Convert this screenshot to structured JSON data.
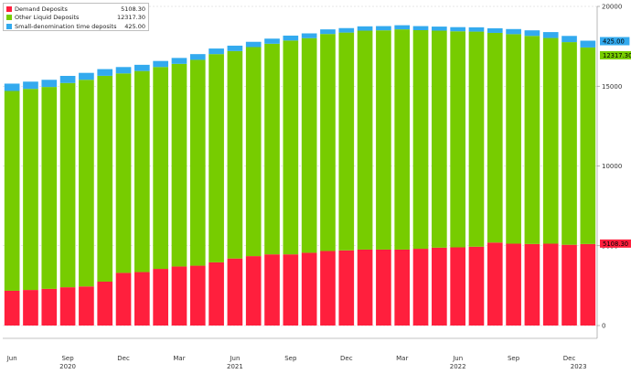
{
  "chart_data": {
    "type": "bar",
    "stacked": true,
    "title": "",
    "xlabel": "",
    "ylabel": "",
    "ylim": [
      0,
      20000
    ],
    "y_ticks": [
      0,
      5000,
      10000,
      15000,
      20000
    ],
    "y_tick_labels": [
      "0",
      "5000",
      "10000",
      "15000",
      "20000"
    ],
    "y_axis_side": "right",
    "grid": true,
    "legend_position": "top-left",
    "categories": [
      "2020-06",
      "2020-07",
      "2020-08",
      "2020-09",
      "2020-10",
      "2020-11",
      "2020-12",
      "2021-01",
      "2021-02",
      "2021-03",
      "2021-04",
      "2021-05",
      "2021-06",
      "2021-07",
      "2021-08",
      "2021-09",
      "2021-10",
      "2021-11",
      "2021-12",
      "2022-01",
      "2022-02",
      "2022-03",
      "2022-04",
      "2022-05",
      "2022-06",
      "2022-07",
      "2022-08",
      "2022-09",
      "2022-10",
      "2022-11",
      "2022-12",
      "2023-01"
    ],
    "month_labels": [
      {
        "index": 0,
        "label": "Jun"
      },
      {
        "index": 3,
        "label": "Sep"
      },
      {
        "index": 6,
        "label": "Dec"
      },
      {
        "index": 9,
        "label": "Mar"
      },
      {
        "index": 12,
        "label": "Jun"
      },
      {
        "index": 15,
        "label": "Sep"
      },
      {
        "index": 18,
        "label": "Dec"
      },
      {
        "index": 21,
        "label": "Mar"
      },
      {
        "index": 24,
        "label": "Jun"
      },
      {
        "index": 27,
        "label": "Sep"
      },
      {
        "index": 30,
        "label": "Dec"
      }
    ],
    "year_labels": [
      {
        "index": 3,
        "label": "2020"
      },
      {
        "index": 12,
        "label": "2021"
      },
      {
        "index": 24,
        "label": "2022"
      },
      {
        "index": 30.5,
        "label": "2023"
      }
    ],
    "series": [
      {
        "name": "Demand Deposits",
        "color": "#ff1f3d",
        "values": [
          2180,
          2230,
          2300,
          2400,
          2450,
          2750,
          3300,
          3350,
          3550,
          3700,
          3750,
          3960,
          4200,
          4350,
          4460,
          4460,
          4560,
          4670,
          4710,
          4760,
          4760,
          4760,
          4810,
          4880,
          4900,
          4940,
          5200,
          5130,
          5110,
          5130,
          5060,
          5108.3
        ]
      },
      {
        "name": "Other Liquid Deposits",
        "color": "#77cc00",
        "values": [
          12520,
          12600,
          12650,
          12800,
          12950,
          12900,
          12500,
          12600,
          12650,
          12700,
          12900,
          13050,
          13000,
          13100,
          13200,
          13400,
          13450,
          13600,
          13650,
          13720,
          13740,
          13800,
          13700,
          13600,
          13540,
          13480,
          13140,
          13130,
          13040,
          12890,
          12700,
          12317.3
        ]
      },
      {
        "name": "Small-denomination time deposits",
        "color": "#33aaee",
        "values": [
          460,
          455,
          450,
          445,
          435,
          420,
          400,
          390,
          380,
          370,
          360,
          350,
          340,
          330,
          320,
          310,
          300,
          290,
          280,
          270,
          265,
          260,
          255,
          255,
          260,
          270,
          290,
          320,
          350,
          370,
          390,
          425
        ]
      }
    ],
    "last_value_labels": [
      {
        "series": 0,
        "label": "5108.30"
      },
      {
        "series": 1,
        "label": "12317.30"
      },
      {
        "series": 2,
        "label": "425.00"
      }
    ],
    "legend_values": [
      "5108.30",
      "12317.30",
      "425.00"
    ]
  }
}
